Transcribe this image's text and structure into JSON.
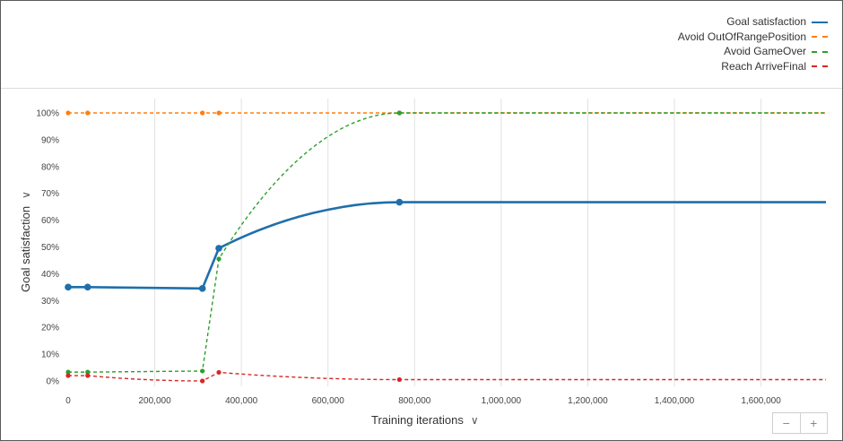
{
  "chart_data": {
    "type": "line",
    "xlabel": "Training iterations",
    "ylabel": "Goal satisfaction",
    "xlim": [
      0,
      1750000
    ],
    "ylim": [
      0,
      1
    ],
    "x_ticks": [
      0,
      200000,
      400000,
      600000,
      800000,
      1000000,
      1200000,
      1400000,
      1600000
    ],
    "x_tick_labels": [
      "0",
      "200,000",
      "400,000",
      "600,000",
      "800,000",
      "1,000,000",
      "1,200,000",
      "1,400,000",
      "1,600,000"
    ],
    "y_ticks": [
      0,
      0.1,
      0.2,
      0.3,
      0.4,
      0.5,
      0.6,
      0.7,
      0.8,
      0.9,
      1.0
    ],
    "y_tick_labels": [
      "0%",
      "10%",
      "20%",
      "30%",
      "40%",
      "50%",
      "60%",
      "70%",
      "80%",
      "90%",
      "100%"
    ],
    "grid": "vertical",
    "legend": "top-right",
    "series": [
      {
        "name": "Goal satisfaction",
        "color": "#1f6fab",
        "style": "solid",
        "x": [
          0,
          45000,
          310000,
          348000,
          765000,
          1750000
        ],
        "y": [
          0.35,
          0.35,
          0.345,
          0.495,
          0.667,
          0.667
        ]
      },
      {
        "name": "Avoid OutOfRangePosition",
        "color": "#ff7f0e",
        "style": "dashed",
        "x": [
          0,
          45000,
          310000,
          348000,
          765000,
          1750000
        ],
        "y": [
          1.0,
          1.0,
          1.0,
          1.0,
          1.0,
          1.0
        ]
      },
      {
        "name": "Avoid GameOver",
        "color": "#2ca02c",
        "style": "dashed",
        "x": [
          0,
          45000,
          310000,
          348000,
          765000,
          1750000
        ],
        "y": [
          0.033,
          0.033,
          0.037,
          0.455,
          1.0,
          1.0
        ]
      },
      {
        "name": "Reach ArriveFinal",
        "color": "#d62728",
        "style": "dashed",
        "x": [
          0,
          45000,
          310000,
          348000,
          765000,
          1750000
        ],
        "y": [
          0.02,
          0.02,
          0.0,
          0.032,
          0.005,
          0.005
        ]
      }
    ],
    "marker_x": [
      0,
      45000,
      310000,
      348000,
      765000
    ]
  },
  "zoom": {
    "minus": "−",
    "plus": "+"
  },
  "icons": {
    "chevron": "chevron-down-icon"
  }
}
